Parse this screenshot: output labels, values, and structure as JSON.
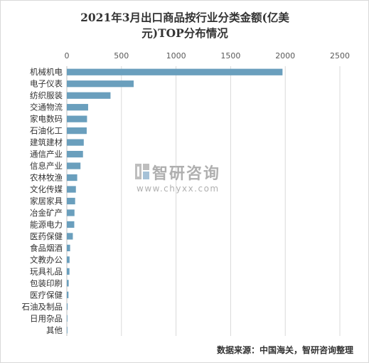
{
  "chart_data": {
    "type": "bar",
    "orientation": "horizontal",
    "title": "2021年3月出口商品按行业分类金额(亿美元)TOP分布情况",
    "title_lines": [
      "2021年3月出口商品按行业分类金额(亿美",
      "元)TOP分布情况"
    ],
    "xlim": [
      0,
      2500
    ],
    "xticks": [
      "0",
      "500",
      "1000",
      "1500",
      "2000",
      "2500"
    ],
    "xtick_values": [
      0,
      500,
      1000,
      1500,
      2000,
      2500
    ],
    "grid": "vertical",
    "categories": [
      "机械机电",
      "电子仪表",
      "纺织服装",
      "交通物流",
      "家电数码",
      "石油化工",
      "建筑建材",
      "通信产业",
      "信息产业",
      "农林牧渔",
      "文化传媒",
      "家居家具",
      "冶金矿产",
      "能源电力",
      "医药保健",
      "食品烟酒",
      "文教办公",
      "玩具礼品",
      "包装印刷",
      "医疗保健",
      "石油及制品",
      "日用杂品",
      "其他"
    ],
    "values": [
      1975,
      612,
      400,
      195,
      185,
      182,
      155,
      148,
      125,
      95,
      83,
      76,
      70,
      68,
      55,
      30,
      25,
      24,
      17,
      15,
      7,
      2,
      1
    ],
    "bar_color": "#6a9fbd"
  },
  "watermark": {
    "name": "智研咨询",
    "url": "www.chyxx.com",
    "logo_icon": "chyxx-logo-icon"
  },
  "source_note": "数据来源：中国海关，智研咨询整理"
}
